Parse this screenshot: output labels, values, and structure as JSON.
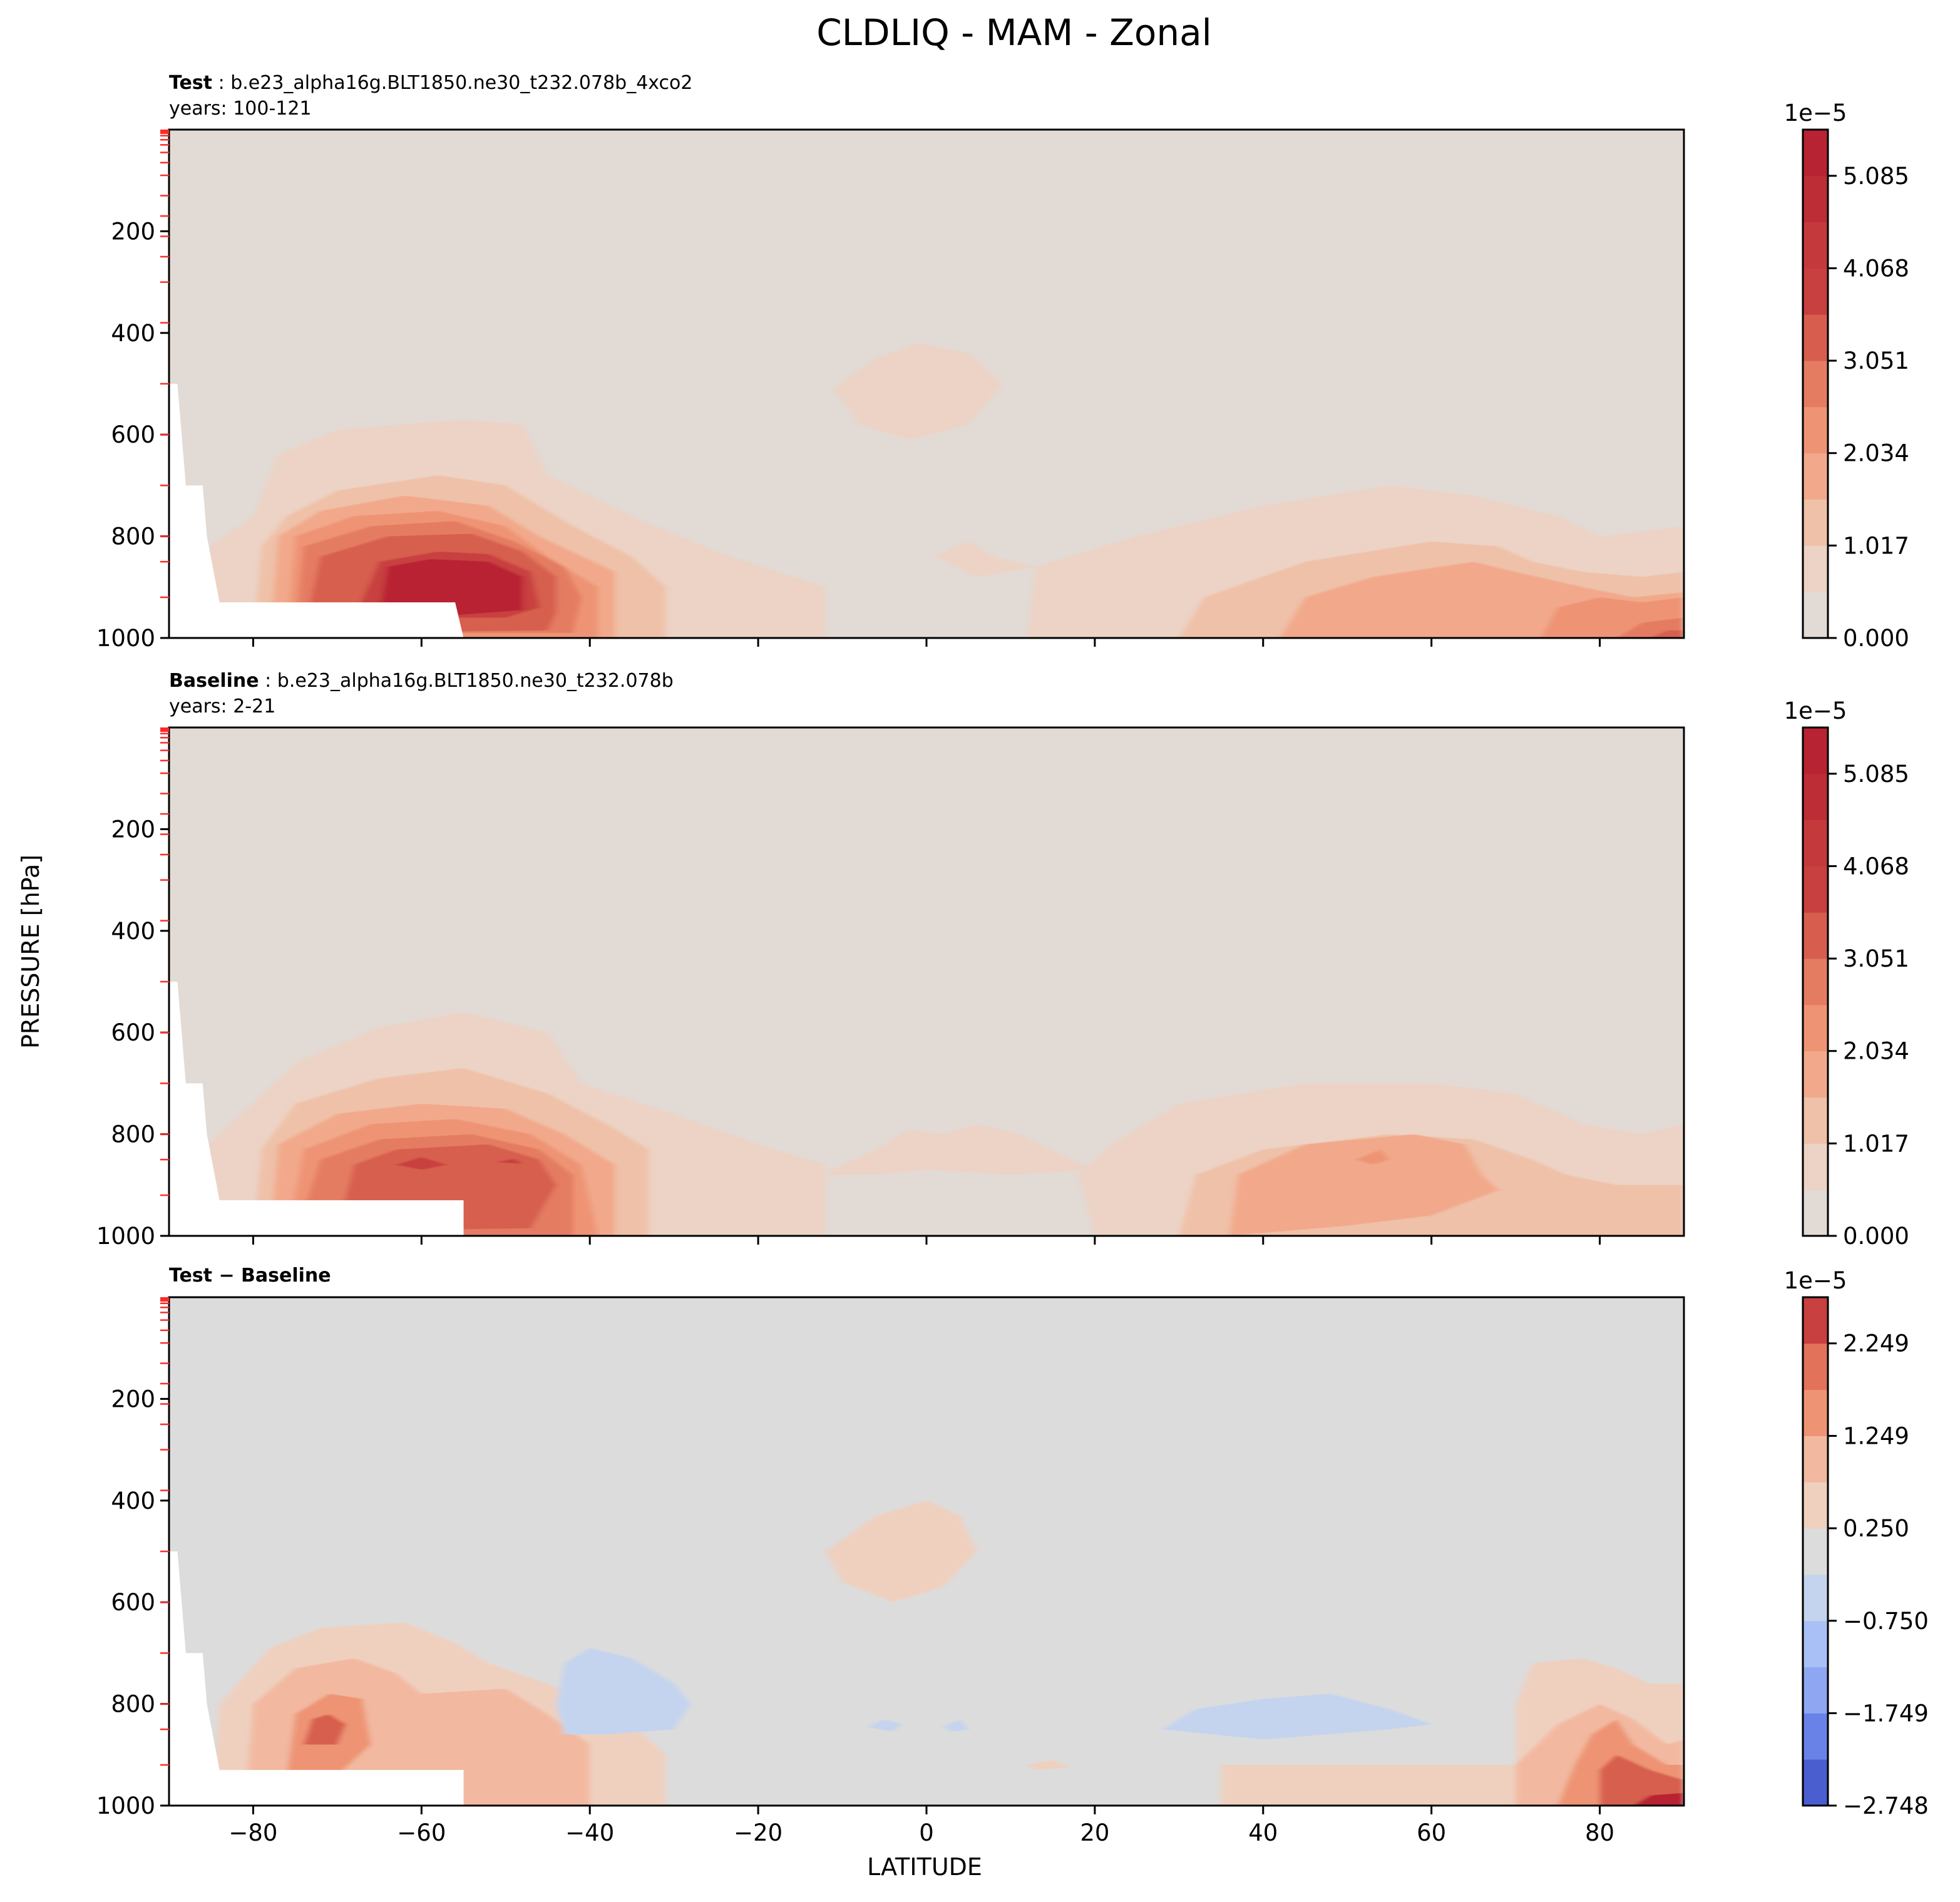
{
  "figure": {
    "title": "CLDLIQ - MAM - Zonal",
    "ylabel": "PRESSURE [hPa]",
    "xlabel": "LATITUDE"
  },
  "panels": [
    {
      "label_bold": "Test",
      "label_rest": " : b.e23_alpha16g.BLT1850.ne30_t232.078b_4xco2",
      "years": "years: 100-121",
      "cbar_exponent": "1e−5",
      "cbar_ticks": [
        "0.000",
        "1.017",
        "2.034",
        "3.051",
        "4.068",
        "5.085"
      ]
    },
    {
      "label_bold": "Baseline",
      "label_rest": " : b.e23_alpha16g.BLT1850.ne30_t232.078b",
      "years": "years: 2-21",
      "cbar_exponent": "1e−5",
      "cbar_ticks": [
        "0.000",
        "1.017",
        "2.034",
        "3.051",
        "4.068",
        "5.085"
      ]
    },
    {
      "label_bold": "Test − Baseline",
      "label_rest": "",
      "years": "",
      "cbar_exponent": "1e−5",
      "cbar_ticks": [
        "−2.748",
        "−1.749",
        "−0.750",
        "0.250",
        "1.249",
        "2.249"
      ]
    }
  ],
  "chart_data": [
    {
      "type": "contour",
      "title": "Test : b.e23_alpha16g.BLT1850.ne30_t232.078b_4xco2",
      "xlabel": "LATITUDE",
      "ylabel": "PRESSURE [hPa]",
      "xlim": [
        -90,
        90
      ],
      "ylim": [
        1000,
        0
      ],
      "x_ticks": [
        -80,
        -60,
        -40,
        -20,
        0,
        20,
        40,
        60,
        80
      ],
      "y_ticks": [
        200,
        400,
        600,
        800,
        1000
      ],
      "colorbar": {
        "scale": "1e-5",
        "levels": [
          0.0,
          0.5085,
          1.017,
          1.5255,
          2.034,
          2.5425,
          3.051,
          3.5595,
          4.068,
          4.5765,
          5.085,
          5.5935
        ]
      },
      "features": [
        {
          "lat": -55,
          "pressure": 870,
          "peak": 5.5
        },
        {
          "lat": -3,
          "pressure": 500,
          "peak": 0.6
        },
        {
          "lat": 52,
          "pressure": 930,
          "peak": 2.8
        },
        {
          "lat": 88,
          "pressure": 990,
          "peak": 3.2
        }
      ]
    },
    {
      "type": "contour",
      "title": "Baseline : b.e23_alpha16g.BLT1850.ne30_t232.078b",
      "xlabel": "LATITUDE",
      "ylabel": "PRESSURE [hPa]",
      "xlim": [
        -90,
        90
      ],
      "ylim": [
        1000,
        0
      ],
      "x_ticks": [
        -80,
        -60,
        -40,
        -20,
        0,
        20,
        40,
        60,
        80
      ],
      "y_ticks": [
        200,
        400,
        600,
        800,
        1000
      ],
      "colorbar": {
        "scale": "1e-5",
        "levels": [
          0.0,
          0.5085,
          1.017,
          1.5255,
          2.034,
          2.5425,
          3.051,
          3.5595,
          4.068,
          4.5765,
          5.085,
          5.5935
        ]
      },
      "features": [
        {
          "lat": -55,
          "pressure": 860,
          "peak": 4.6
        },
        {
          "lat": 50,
          "pressure": 880,
          "peak": 2.3
        }
      ]
    },
    {
      "type": "contour",
      "title": "Test − Baseline",
      "xlabel": "LATITUDE",
      "ylabel": "PRESSURE [hPa]",
      "xlim": [
        -90,
        90
      ],
      "ylim": [
        1000,
        0
      ],
      "x_ticks": [
        -80,
        -60,
        -40,
        -20,
        0,
        20,
        40,
        60,
        80
      ],
      "y_ticks": [
        200,
        400,
        600,
        800,
        1000
      ],
      "colorbar": {
        "scale": "1e-5",
        "levels": [
          -2.748,
          -2.248,
          -1.749,
          -1.249,
          -0.75,
          -0.25,
          0.25,
          0.75,
          1.249,
          1.749,
          2.249,
          2.748
        ]
      },
      "features": [
        {
          "lat": -72,
          "pressure": 860,
          "peak": 1.9
        },
        {
          "lat": -35,
          "pressure": 790,
          "peak": -0.5
        },
        {
          "lat": -3,
          "pressure": 500,
          "peak": 0.6
        },
        {
          "lat": 38,
          "pressure": 840,
          "peak": -0.5
        },
        {
          "lat": 88,
          "pressure": 990,
          "peak": 2.6
        }
      ]
    }
  ]
}
